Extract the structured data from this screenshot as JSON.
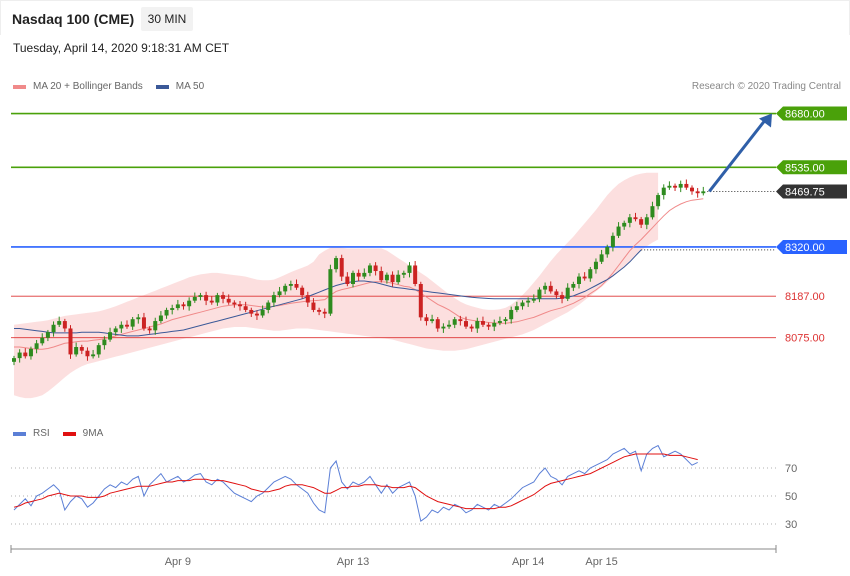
{
  "header": {
    "title": "Nasdaq 100 (CME)",
    "interval": "30 MIN",
    "datetime": "Tuesday, April 14, 2020 9:18:31 AM CET",
    "copyright": "Research © 2020 Trading Central"
  },
  "colors": {
    "bb_fill": "#fbd4d4",
    "ma20": "#f08a8a",
    "ma50": "#3b5998",
    "candle_up": "#2e8b1f",
    "candle_down": "#cc2222",
    "target": "#4aa10a",
    "pivot": "#2962ff",
    "support": "#dd3333",
    "arrow": "#2f5fa8",
    "rsi": "#5b7fd6",
    "rsi_ma": "#e01010"
  },
  "chart_data": [
    {
      "type": "candlestick",
      "title": "Nasdaq 100 (CME)",
      "legend": [
        {
          "name": "MA 20 + Bollinger Bands",
          "color": "#f08a8a"
        },
        {
          "name": "MA 50",
          "color": "#3b5998"
        }
      ],
      "ylim": [
        7880,
        8730
      ],
      "x_ticks": [
        {
          "label": "Apr 9",
          "index": 29
        },
        {
          "label": "Apr 13",
          "index": 60
        },
        {
          "label": "Apr 14",
          "index": 91
        },
        {
          "label": "Apr 15",
          "index": 104
        }
      ],
      "levels": [
        {
          "label": "8680.00",
          "value": 8680,
          "role": "target"
        },
        {
          "label": "8535.00",
          "value": 8535,
          "role": "target"
        },
        {
          "label": "8320.00",
          "value": 8320,
          "role": "pivot"
        },
        {
          "label": "8187.00",
          "value": 8187,
          "role": "support"
        },
        {
          "label": "8075.00",
          "value": 8075,
          "role": "support"
        }
      ],
      "last_price": {
        "label": "8469.75",
        "value": 8469.75
      },
      "closes": [
        8020,
        8035,
        8025,
        8045,
        8060,
        8075,
        8090,
        8110,
        8120,
        8100,
        8030,
        8050,
        8040,
        8025,
        8030,
        8055,
        8070,
        8090,
        8100,
        8110,
        8105,
        8125,
        8130,
        8100,
        8095,
        8120,
        8135,
        8150,
        8155,
        8165,
        8160,
        8175,
        8185,
        8190,
        8175,
        8170,
        8190,
        8180,
        8170,
        8165,
        8160,
        8150,
        8140,
        8135,
        8150,
        8170,
        8190,
        8200,
        8215,
        8220,
        8210,
        8190,
        8170,
        8150,
        8145,
        8140,
        8260,
        8290,
        8240,
        8220,
        8250,
        8240,
        8250,
        8270,
        8255,
        8230,
        8245,
        8225,
        8245,
        8250,
        8270,
        8220,
        8130,
        8120,
        8125,
        8100,
        8105,
        8110,
        8125,
        8120,
        8105,
        8100,
        8120,
        8110,
        8105,
        8115,
        8120,
        8125,
        8150,
        8160,
        8170,
        8175,
        8180,
        8205,
        8215,
        8200,
        8190,
        8180,
        8210,
        8220,
        8240,
        8235,
        8260,
        8280,
        8300,
        8320,
        8350,
        8375,
        8385,
        8400,
        8395,
        8380,
        8400,
        8430,
        8460,
        8480,
        8485,
        8480,
        8490,
        8480,
        8470,
        8465,
        8470
      ],
      "ma20": [
        8050,
        8050,
        8048,
        8046,
        8044,
        8044,
        8046,
        8050,
        8055,
        8060,
        8062,
        8064,
        8066,
        8066,
        8068,
        8070,
        8072,
        8076,
        8080,
        8084,
        8088,
        8092,
        8096,
        8100,
        8104,
        8108,
        8112,
        8118,
        8124,
        8128,
        8132,
        8136,
        8140,
        8144,
        8148,
        8152,
        8156,
        8160,
        8162,
        8164,
        8164,
        8164,
        8162,
        8160,
        8158,
        8158,
        8160,
        8162,
        8165,
        8168,
        8170,
        8172,
        8174,
        8175,
        8176,
        8178,
        8190,
        8200,
        8205,
        8208,
        8212,
        8216,
        8220,
        8224,
        8226,
        8226,
        8225,
        8222,
        8218,
        8214,
        8212,
        8205,
        8195,
        8185,
        8175,
        8165,
        8158,
        8150,
        8140,
        8130,
        8125,
        8122,
        8120,
        8118,
        8116,
        8115,
        8114,
        8114,
        8116,
        8118,
        8122,
        8126,
        8130,
        8136,
        8142,
        8148,
        8152,
        8156,
        8162,
        8168,
        8176,
        8184,
        8194,
        8204,
        8216,
        8232,
        8250,
        8270,
        8290,
        8310,
        8326,
        8340,
        8356,
        8372,
        8388,
        8404,
        8418,
        8428,
        8436,
        8442,
        8446,
        8448,
        8450
      ],
      "bb_upper": [
        8110,
        8112,
        8114,
        8116,
        8118,
        8120,
        8122,
        8126,
        8130,
        8134,
        8136,
        8138,
        8140,
        8142,
        8144,
        8146,
        8150,
        8155,
        8160,
        8166,
        8172,
        8178,
        8184,
        8190,
        8196,
        8202,
        8208,
        8214,
        8220,
        8226,
        8232,
        8238,
        8242,
        8246,
        8248,
        8250,
        8250,
        8248,
        8246,
        8244,
        8242,
        8240,
        8236,
        8232,
        8230,
        8230,
        8232,
        8238,
        8245,
        8252,
        8258,
        8264,
        8270,
        8280,
        8300,
        8310,
        8318,
        8320,
        8318,
        8316,
        8316,
        8316,
        8316,
        8316,
        8316,
        8316,
        8310,
        8300,
        8290,
        8280,
        8270,
        8260,
        8250,
        8240,
        8228,
        8216,
        8204,
        8192,
        8182,
        8172,
        8165,
        8160,
        8156,
        8152,
        8150,
        8150,
        8152,
        8156,
        8164,
        8176,
        8190,
        8206,
        8224,
        8242,
        8262,
        8282,
        8300,
        8316,
        8332,
        8348,
        8366,
        8384,
        8402,
        8420,
        8440,
        8460,
        8476,
        8490,
        8500,
        8508,
        8514,
        8518,
        8520,
        8520,
        8520
      ],
      "bb_lower": [
        7920,
        7915,
        7912,
        7912,
        7915,
        7920,
        7930,
        7942,
        7955,
        7968,
        7980,
        7990,
        7998,
        8004,
        8008,
        8012,
        8016,
        8020,
        8024,
        8028,
        8032,
        8036,
        8040,
        8044,
        8048,
        8052,
        8056,
        8060,
        8064,
        8068,
        8072,
        8076,
        8080,
        8084,
        8088,
        8092,
        8096,
        8100,
        8102,
        8104,
        8104,
        8104,
        8102,
        8100,
        8098,
        8096,
        8094,
        8094,
        8096,
        8098,
        8100,
        8100,
        8100,
        8098,
        8096,
        8094,
        8092,
        8090,
        8088,
        8086,
        8084,
        8082,
        8080,
        8078,
        8076,
        8074,
        8072,
        8070,
        8066,
        8062,
        8058,
        8054,
        8050,
        8046,
        8044,
        8042,
        8040,
        8040,
        8040,
        8042,
        8044,
        8048,
        8052,
        8056,
        8060,
        8064,
        8068,
        8072,
        8076,
        8080,
        8084,
        8090,
        8096,
        8104,
        8112,
        8120,
        8128,
        8136,
        8144,
        8154,
        8164,
        8176,
        8188,
        8200,
        8212,
        8226,
        8240,
        8254,
        8268,
        8282,
        8296,
        8310,
        8322,
        8332,
        8340
      ],
      "ma50": [
        8100,
        8100,
        8098,
        8096,
        8094,
        8092,
        8090,
        8088,
        8088,
        8088,
        8088,
        8088,
        8090,
        8090,
        8090,
        8090,
        8088,
        8086,
        8084,
        8082,
        8080,
        8080,
        8080,
        8082,
        8084,
        8086,
        8088,
        8090,
        8092,
        8094,
        8096,
        8100,
        8104,
        8108,
        8112,
        8116,
        8120,
        8124,
        8128,
        8132,
        8136,
        8140,
        8144,
        8148,
        8152,
        8156,
        8160,
        8164,
        8168,
        8172,
        8176,
        8180,
        8186,
        8192,
        8198,
        8204,
        8210,
        8216,
        8220,
        8224,
        8226,
        8228,
        8228,
        8226,
        8224,
        8220,
        8216,
        8212,
        8210,
        8208,
        8206,
        8204,
        8202,
        8200,
        8198,
        8196,
        8194,
        8192,
        8190,
        8188,
        8186,
        8184,
        8183,
        8182,
        8181,
        8180,
        8180,
        8180,
        8180,
        8180,
        8180,
        8180,
        8180,
        8180,
        8180,
        8180,
        8180,
        8182,
        8184,
        8188,
        8194,
        8200,
        8208,
        8216,
        8224,
        8232,
        8242,
        8254,
        8266,
        8280,
        8296,
        8312
      ]
    },
    {
      "type": "line",
      "legend": [
        {
          "name": "RSI",
          "color": "#5b7fd6"
        },
        {
          "name": "9MA",
          "color": "#e01010"
        }
      ],
      "ylim": [
        15,
        90
      ],
      "y_ticks": [
        30,
        50,
        70
      ],
      "rsi": [
        40,
        44,
        48,
        43,
        50,
        52,
        55,
        58,
        54,
        40,
        46,
        50,
        48,
        42,
        45,
        50,
        55,
        58,
        56,
        60,
        58,
        62,
        64,
        50,
        58,
        62,
        66,
        60,
        62,
        64,
        60,
        62,
        65,
        66,
        60,
        58,
        62,
        60,
        56,
        52,
        50,
        48,
        46,
        50,
        52,
        56,
        60,
        62,
        64,
        62,
        58,
        55,
        52,
        45,
        40,
        38,
        70,
        75,
        60,
        55,
        60,
        58,
        60,
        64,
        58,
        52,
        58,
        52,
        56,
        58,
        60,
        50,
        32,
        35,
        40,
        38,
        42,
        40,
        44,
        42,
        38,
        40,
        44,
        42,
        40,
        44,
        42,
        45,
        48,
        52,
        56,
        58,
        60,
        66,
        70,
        64,
        62,
        58,
        64,
        66,
        68,
        66,
        70,
        72,
        74,
        76,
        80,
        82,
        84,
        80,
        82,
        68,
        80,
        84,
        86,
        78,
        80,
        82,
        80,
        76,
        72,
        74
      ],
      "rsi_ma": [
        42,
        43,
        45,
        46,
        47,
        48,
        50,
        51,
        52,
        51,
        50,
        50,
        50,
        49,
        49,
        49,
        50,
        52,
        53,
        54,
        55,
        56,
        57,
        57,
        57,
        58,
        59,
        60,
        60,
        61,
        61,
        61,
        62,
        62,
        62,
        61,
        61,
        61,
        60,
        59,
        58,
        57,
        55,
        54,
        53,
        53,
        54,
        55,
        57,
        58,
        58,
        58,
        57,
        56,
        54,
        52,
        52,
        54,
        56,
        56,
        57,
        57,
        58,
        58,
        58,
        57,
        57,
        56,
        56,
        56,
        57,
        56,
        53,
        50,
        48,
        46,
        45,
        44,
        43,
        42,
        41,
        41,
        41,
        41,
        41,
        41,
        42,
        42,
        43,
        45,
        47,
        49,
        51,
        54,
        57,
        59,
        60,
        61,
        62,
        63,
        64,
        65,
        66,
        68,
        70,
        72,
        74,
        76,
        78,
        79,
        80,
        80,
        80,
        80,
        80,
        80,
        79,
        79,
        79,
        78,
        77,
        76
      ]
    }
  ]
}
